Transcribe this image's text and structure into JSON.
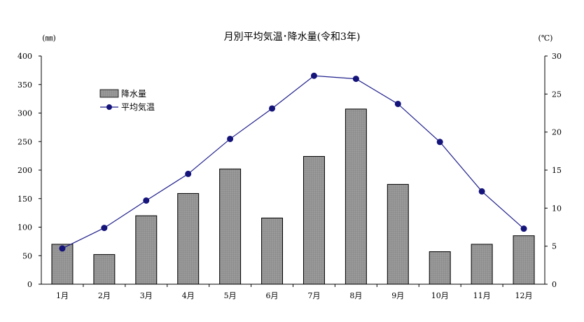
{
  "chart_data": {
    "type": "bar+line",
    "title": "月別平均気温･降水量(令和3年)",
    "left_unit": "(㎜)",
    "right_unit": "(℃)",
    "categories": [
      "1月",
      "2月",
      "3月",
      "4月",
      "5月",
      "6月",
      "7月",
      "8月",
      "9月",
      "10月",
      "11月",
      "12月"
    ],
    "left_axis": {
      "min": 0,
      "max": 400,
      "step": 50,
      "ticks": [
        "0",
        "50",
        "100",
        "150",
        "200",
        "250",
        "300",
        "350",
        "400"
      ]
    },
    "right_axis": {
      "min": 0,
      "max": 30,
      "step": 5,
      "ticks": [
        "0",
        "5",
        "10",
        "15",
        "20",
        "25",
        "30"
      ]
    },
    "series": [
      {
        "name": "降水量",
        "type": "bar",
        "axis": "left",
        "values": [
          70,
          52,
          120,
          159,
          202,
          116,
          224,
          307,
          175,
          57,
          70,
          85
        ],
        "color": "#8c8c8c"
      },
      {
        "name": "平均気温",
        "type": "line",
        "axis": "right",
        "values": [
          4.7,
          7.4,
          11.0,
          14.5,
          19.1,
          23.1,
          27.4,
          27.0,
          23.7,
          18.7,
          12.2,
          7.3
        ],
        "color": "#1f1f8c"
      }
    ],
    "legend_position": "top-left",
    "grid": false
  }
}
